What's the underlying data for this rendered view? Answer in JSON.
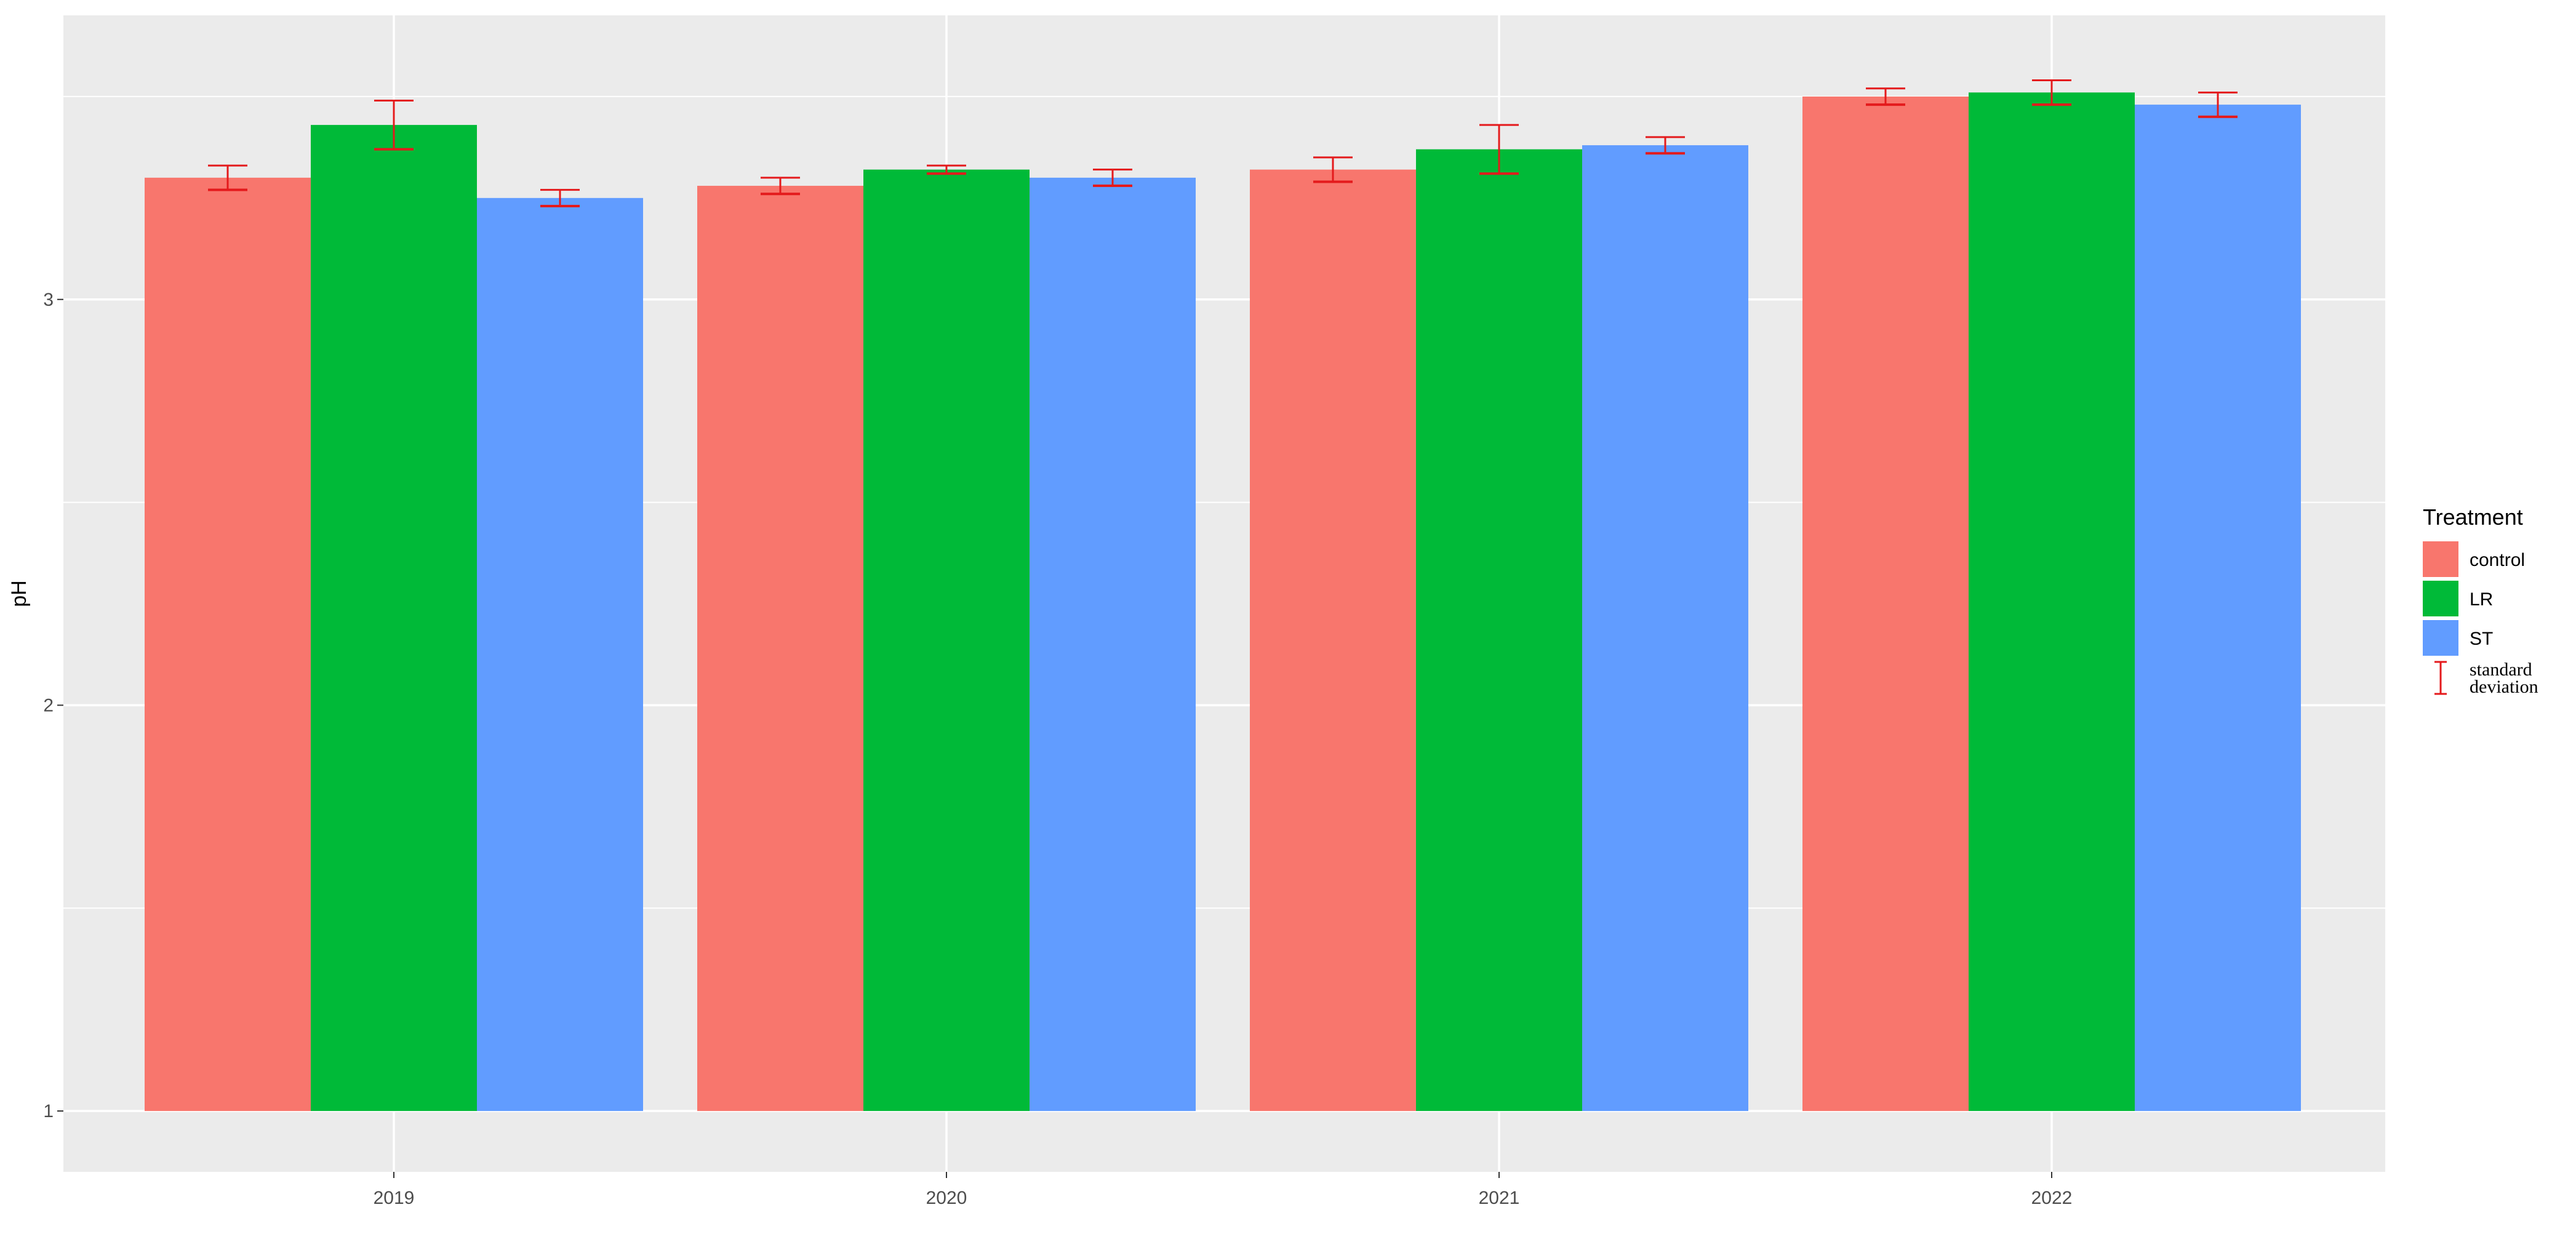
{
  "chart_data": {
    "type": "bar",
    "title": "",
    "xlabel": "",
    "ylabel": "pH",
    "categories": [
      "2019",
      "2020",
      "2021",
      "2022"
    ],
    "y_ticks": [
      "1",
      "2",
      "3"
    ],
    "y_tick_values": [
      1,
      2,
      3
    ],
    "ylim": [
      0.85,
      3.7
    ],
    "bar_base": 1,
    "grid": true,
    "legend": {
      "title": "Treatment",
      "placement": "right",
      "error_label_lines": [
        "standard",
        "deviation"
      ]
    },
    "error_bar_color": "#e41a1c",
    "panel_background": "#ebebeb",
    "series": [
      {
        "name": "control",
        "color": "#f8766d",
        "values": [
          3.3,
          3.28,
          3.32,
          3.5
        ],
        "sd": [
          0.03,
          0.02,
          0.03,
          0.02
        ]
      },
      {
        "name": "LR",
        "color": "#00ba38",
        "values": [
          3.43,
          3.32,
          3.37,
          3.51
        ],
        "sd": [
          0.06,
          0.01,
          0.06,
          0.03
        ]
      },
      {
        "name": "ST",
        "color": "#619cff",
        "values": [
          3.25,
          3.3,
          3.38,
          3.48
        ],
        "sd": [
          0.02,
          0.02,
          0.02,
          0.03
        ]
      }
    ]
  }
}
